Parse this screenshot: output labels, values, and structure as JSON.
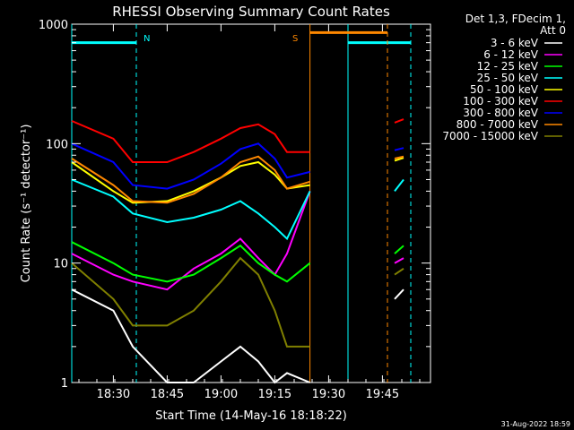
{
  "chart_data": {
    "type": "line",
    "title": "RHESSI Observing Summary Count Rates",
    "xlabel": "Start Time (14-May-16 18:18:22)",
    "ylabel": "Count Rate (s⁻¹ detector⁻¹)",
    "yscale": "log",
    "ylim": [
      1,
      1000
    ],
    "xlim_minutes": [
      0,
      100
    ],
    "x_ticks": [
      {
        "label": "18:30",
        "t": 11.6
      },
      {
        "label": "18:45",
        "t": 26.6
      },
      {
        "label": "19:00",
        "t": 41.6
      },
      {
        "label": "19:15",
        "t": 56.6
      },
      {
        "label": "19:30",
        "t": 71.6
      },
      {
        "label": "19:45",
        "t": 86.6
      }
    ],
    "y_ticks": [
      {
        "label": "1",
        "v": 1
      },
      {
        "label": "10",
        "v": 10
      },
      {
        "label": "100",
        "v": 100
      },
      {
        "label": "1000",
        "v": 1000
      }
    ],
    "legend_header": [
      "Det 1,3, FDecim 1,",
      "Att 0"
    ],
    "legend_placement": "right",
    "annotations": [
      {
        "text": "N",
        "t": 20,
        "color": "#00ffff"
      },
      {
        "text": "S",
        "t": 64.5,
        "color": "#ff8800"
      }
    ],
    "footer_date": "31-Aug-2022 18:59",
    "x": [
      0,
      11.6,
      17,
      26.6,
      34,
      41.6,
      47,
      52,
      56.6,
      60,
      66.4
    ],
    "x_late": [
      90,
      92.5
    ],
    "series": [
      {
        "name": "3 - 6 keV",
        "color": "#ffffff",
        "values": [
          6,
          4,
          2,
          1,
          1,
          1.5,
          2,
          1.5,
          1,
          1.2,
          1
        ],
        "late": [
          5,
          6
        ]
      },
      {
        "name": "6 - 12 keV",
        "color": "#ff00ff",
        "values": [
          12,
          8,
          7,
          6,
          9,
          12,
          16,
          11,
          8,
          12,
          40
        ],
        "late": [
          10,
          11
        ]
      },
      {
        "name": "12 - 25 keV",
        "color": "#00ff00",
        "values": [
          15,
          10,
          8,
          7,
          8,
          11,
          14,
          10,
          8,
          7,
          10
        ],
        "late": [
          12,
          14
        ]
      },
      {
        "name": "25 - 50 keV",
        "color": "#00ffff",
        "values": [
          50,
          36,
          26,
          22,
          24,
          28,
          33,
          26,
          20,
          16,
          40
        ],
        "late": [
          40,
          50
        ]
      },
      {
        "name": "50 - 100 keV",
        "color": "#ffff00",
        "values": [
          70,
          40,
          32,
          33,
          40,
          52,
          65,
          70,
          55,
          42,
          45
        ],
        "late": [
          72,
          76
        ]
      },
      {
        "name": "100 - 300 keV",
        "color": "#ff0000",
        "values": [
          155,
          110,
          70,
          70,
          85,
          110,
          135,
          145,
          120,
          85,
          85
        ],
        "late": [
          150,
          160
        ]
      },
      {
        "name": "300 - 800 keV",
        "color": "#0000ff",
        "values": [
          100,
          70,
          45,
          42,
          50,
          68,
          90,
          100,
          75,
          52,
          58
        ],
        "late": [
          88,
          92
        ]
      },
      {
        "name": "800 - 7000 keV",
        "color": "#ff8800",
        "values": [
          75,
          45,
          33,
          32,
          38,
          52,
          70,
          78,
          60,
          42,
          48
        ],
        "late": [
          75,
          78
        ]
      },
      {
        "name": "7000 - 15000 keV",
        "color": "#808000",
        "values": [
          10,
          5,
          3,
          3,
          4,
          7,
          11,
          8,
          4,
          2,
          2
        ],
        "late": [
          8,
          9
        ]
      }
    ],
    "segments": {
      "N": {
        "color": "#00ffff",
        "level": 700,
        "ranges": [
          [
            0,
            18
          ],
          [
            77,
            94.5
          ]
        ],
        "markers": [
          0,
          18,
          77,
          94.5
        ]
      },
      "S": {
        "color": "#ff8800",
        "level": 850,
        "ranges": [
          [
            66.4,
            88
          ]
        ],
        "markers": [
          66.4,
          88
        ]
      }
    }
  }
}
